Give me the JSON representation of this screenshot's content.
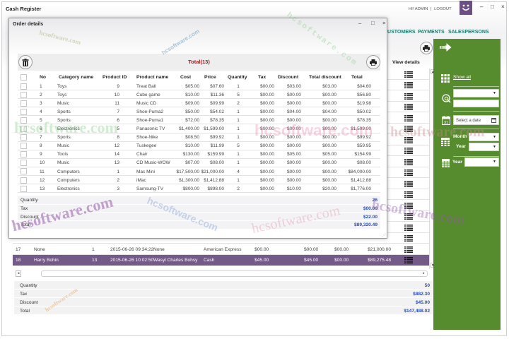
{
  "theme": {
    "accent_green": "#568b2e",
    "selected_row": "#735a88",
    "nav_text": "#1e7a6e",
    "summary_value": "#2a4fb8",
    "total_title": "#9b1c1c",
    "logo_purple": "#6b4f85"
  },
  "window": {
    "title": "Cash Register",
    "greeting": "HI! ADMIN",
    "separator": "|",
    "logout": "LOGOUT",
    "controls": {
      "minimize": "–",
      "maximize": "□",
      "close": "×"
    },
    "logo_icon": "smiley-icon"
  },
  "nav": {
    "items": [
      {
        "label": "CUSTOMERS"
      },
      {
        "label": "PAYMENTS"
      },
      {
        "label": "SALESPERSONS"
      }
    ]
  },
  "main": {
    "print_icon": "printer-icon",
    "view_details_header": "View details",
    "table": {
      "obscured_rows": [
        {
          "view_icon": "list-icon"
        },
        {
          "view_icon": "list-icon"
        },
        {
          "view_icon": "list-icon"
        },
        {
          "view_icon": "list-icon"
        },
        {
          "view_icon": "list-icon"
        },
        {
          "view_icon": "list-icon"
        },
        {
          "view_icon": "list-icon"
        },
        {
          "view_icon": "list-icon"
        },
        {
          "view_icon": "list-icon"
        },
        {
          "view_icon": "list-icon"
        },
        {
          "view_icon": "list-icon"
        },
        {
          "view_icon": "list-icon"
        },
        {
          "view_icon": "list-icon"
        },
        {
          "view_icon": "list-icon"
        },
        {
          "view_icon": "list-icon"
        },
        {
          "view_icon": "list-icon"
        }
      ],
      "rows": [
        {
          "no": "17",
          "customer": "None",
          "items": "1",
          "date": "2015-06-26 09:34:22",
          "salesperson": "None",
          "payment": "American Express",
          "tax": "$00.00",
          "discount": "$00.00",
          "extra": "$00.00",
          "total": "$21,000.00",
          "selected": false
        },
        {
          "no": "18",
          "customer": "Harry Bohin",
          "items": "13",
          "date": "2015-06-26 10:02:50",
          "salesperson": "Wasyl Charles Bohsy",
          "payment": "Cash",
          "tax": "$45.00",
          "discount": "$45.00",
          "extra": "$00.00",
          "total": "$89,275.48",
          "selected": true
        }
      ]
    },
    "summary": [
      {
        "label": "Quantity",
        "value": "50"
      },
      {
        "label": "Tax",
        "value": "$882.30"
      },
      {
        "label": "Discount",
        "value": "$45.00"
      },
      {
        "label": "Total",
        "value": "$147,488.02"
      }
    ]
  },
  "sidebar": {
    "collapse_icon": "arrow-right-icon",
    "show_all": "Show all",
    "filter_select_value": "",
    "filter_input_value": "",
    "date_placeholder": "Select a date",
    "month_label": "Month",
    "month_value": "",
    "year_label": "Year",
    "year_value": "",
    "year_label_2": "Year",
    "year_value_2": ""
  },
  "dialog": {
    "title": "Order details",
    "controls": {
      "minimize": "–",
      "maximize": "□",
      "close": "×"
    },
    "total_title": "Total(13)",
    "columns": [
      "No",
      "Category name",
      "Product ID",
      "Product name",
      "Cost",
      "Price",
      "Quantity",
      "Tax",
      "Discount",
      "Total discount",
      "Total"
    ],
    "rows": [
      {
        "no": "1",
        "category": "Toys",
        "product_id": "9",
        "product_name": "Treat Ball",
        "cost": "$05.00",
        "price": "$07.60",
        "quantity": "1",
        "tax": "$00.00",
        "discount": "$03.00",
        "total_discount": "$03.00",
        "total": "$04.60"
      },
      {
        "no": "2",
        "category": "Toys",
        "product_id": "10",
        "product_name": "Cube game",
        "cost": "$10.00",
        "price": "$11.36",
        "quantity": "5",
        "tax": "$00.00",
        "discount": "$00.00",
        "total_discount": "$00.00",
        "total": "$56.80"
      },
      {
        "no": "3",
        "category": "Music",
        "product_id": "11",
        "product_name": "Music CD",
        "cost": "$09.00",
        "price": "$09.99",
        "quantity": "2",
        "tax": "$00.00",
        "discount": "$00.00",
        "total_discount": "$00.00",
        "total": "$19.98"
      },
      {
        "no": "4",
        "category": "Sports",
        "product_id": "7",
        "product_name": "Shoe-Puma2",
        "cost": "$50.00",
        "price": "$54.02",
        "quantity": "1",
        "tax": "$00.00",
        "discount": "$04.00",
        "total_discount": "$04.00",
        "total": "$50.02"
      },
      {
        "no": "5",
        "category": "Sports",
        "product_id": "6",
        "product_name": "Shoe-Puma1",
        "cost": "$72.00",
        "price": "$78.35",
        "quantity": "1",
        "tax": "$00.00",
        "discount": "$00.00",
        "total_discount": "$00.00",
        "total": "$78.35"
      },
      {
        "no": "6",
        "category": "Electronics",
        "product_id": "5",
        "product_name": "Panasonic TV",
        "cost": "$1,400.00",
        "price": "$1,599.00",
        "quantity": "1",
        "tax": "$00.00",
        "discount": "$00.00",
        "total_discount": "$00.00",
        "total": "$1,599.00"
      },
      {
        "no": "7",
        "category": "Sports",
        "product_id": "8",
        "product_name": "Shoe-Nike",
        "cost": "$08.50",
        "price": "$99.92",
        "quantity": "1",
        "tax": "$00.00",
        "discount": "$00.00",
        "total_discount": "$00.00",
        "total": "$99.92"
      },
      {
        "no": "8",
        "category": "Music",
        "product_id": "12",
        "product_name": "Tuskegee",
        "cost": "$10.00",
        "price": "$11.99",
        "quantity": "5",
        "tax": "$00.00",
        "discount": "$00.00",
        "total_discount": "$00.00",
        "total": "$59.95"
      },
      {
        "no": "9",
        "category": "Tools",
        "product_id": "14",
        "product_name": "Chair",
        "cost": "$130.00",
        "price": "$159.99",
        "quantity": "1",
        "tax": "$00.00",
        "discount": "$05.00",
        "total_discount": "$05.00",
        "total": "$154.99"
      },
      {
        "no": "10",
        "category": "Music",
        "product_id": "13",
        "product_name": "CD Music-WOW",
        "cost": "$07.00",
        "price": "$08.00",
        "quantity": "1",
        "tax": "$00.00",
        "discount": "$00.00",
        "total_discount": "$00.00",
        "total": "$08.00"
      },
      {
        "no": "11",
        "category": "Computers",
        "product_id": "1",
        "product_name": "Mac Mini",
        "cost": "$17,500.00",
        "price": "$21,000.00",
        "quantity": "4",
        "tax": "$00.00",
        "discount": "$00.00",
        "total_discount": "$00.00",
        "total": "$84,000.00"
      },
      {
        "no": "12",
        "category": "Computers",
        "product_id": "2",
        "product_name": "iMac",
        "cost": "$1,300.00",
        "price": "$1,412.88",
        "quantity": "1",
        "tax": "$00.00",
        "discount": "$00.00",
        "total_discount": "$00.00",
        "total": "$1,412.88"
      },
      {
        "no": "13",
        "category": "Electronics",
        "product_id": "3",
        "product_name": "Samsung-TV",
        "cost": "$800.00",
        "price": "$898.00",
        "quantity": "2",
        "tax": "$00.00",
        "discount": "$10.00",
        "total_discount": "$20.00",
        "total": "$1,776.00"
      }
    ],
    "summary": [
      {
        "label": "Quantity",
        "value": "26"
      },
      {
        "label": "Tax",
        "value": "$00.00"
      },
      {
        "label": "Discount",
        "value": "$22.00"
      },
      {
        "label": "Total",
        "value": "$89,320.49"
      }
    ]
  },
  "watermark": "hcsoftware.com"
}
